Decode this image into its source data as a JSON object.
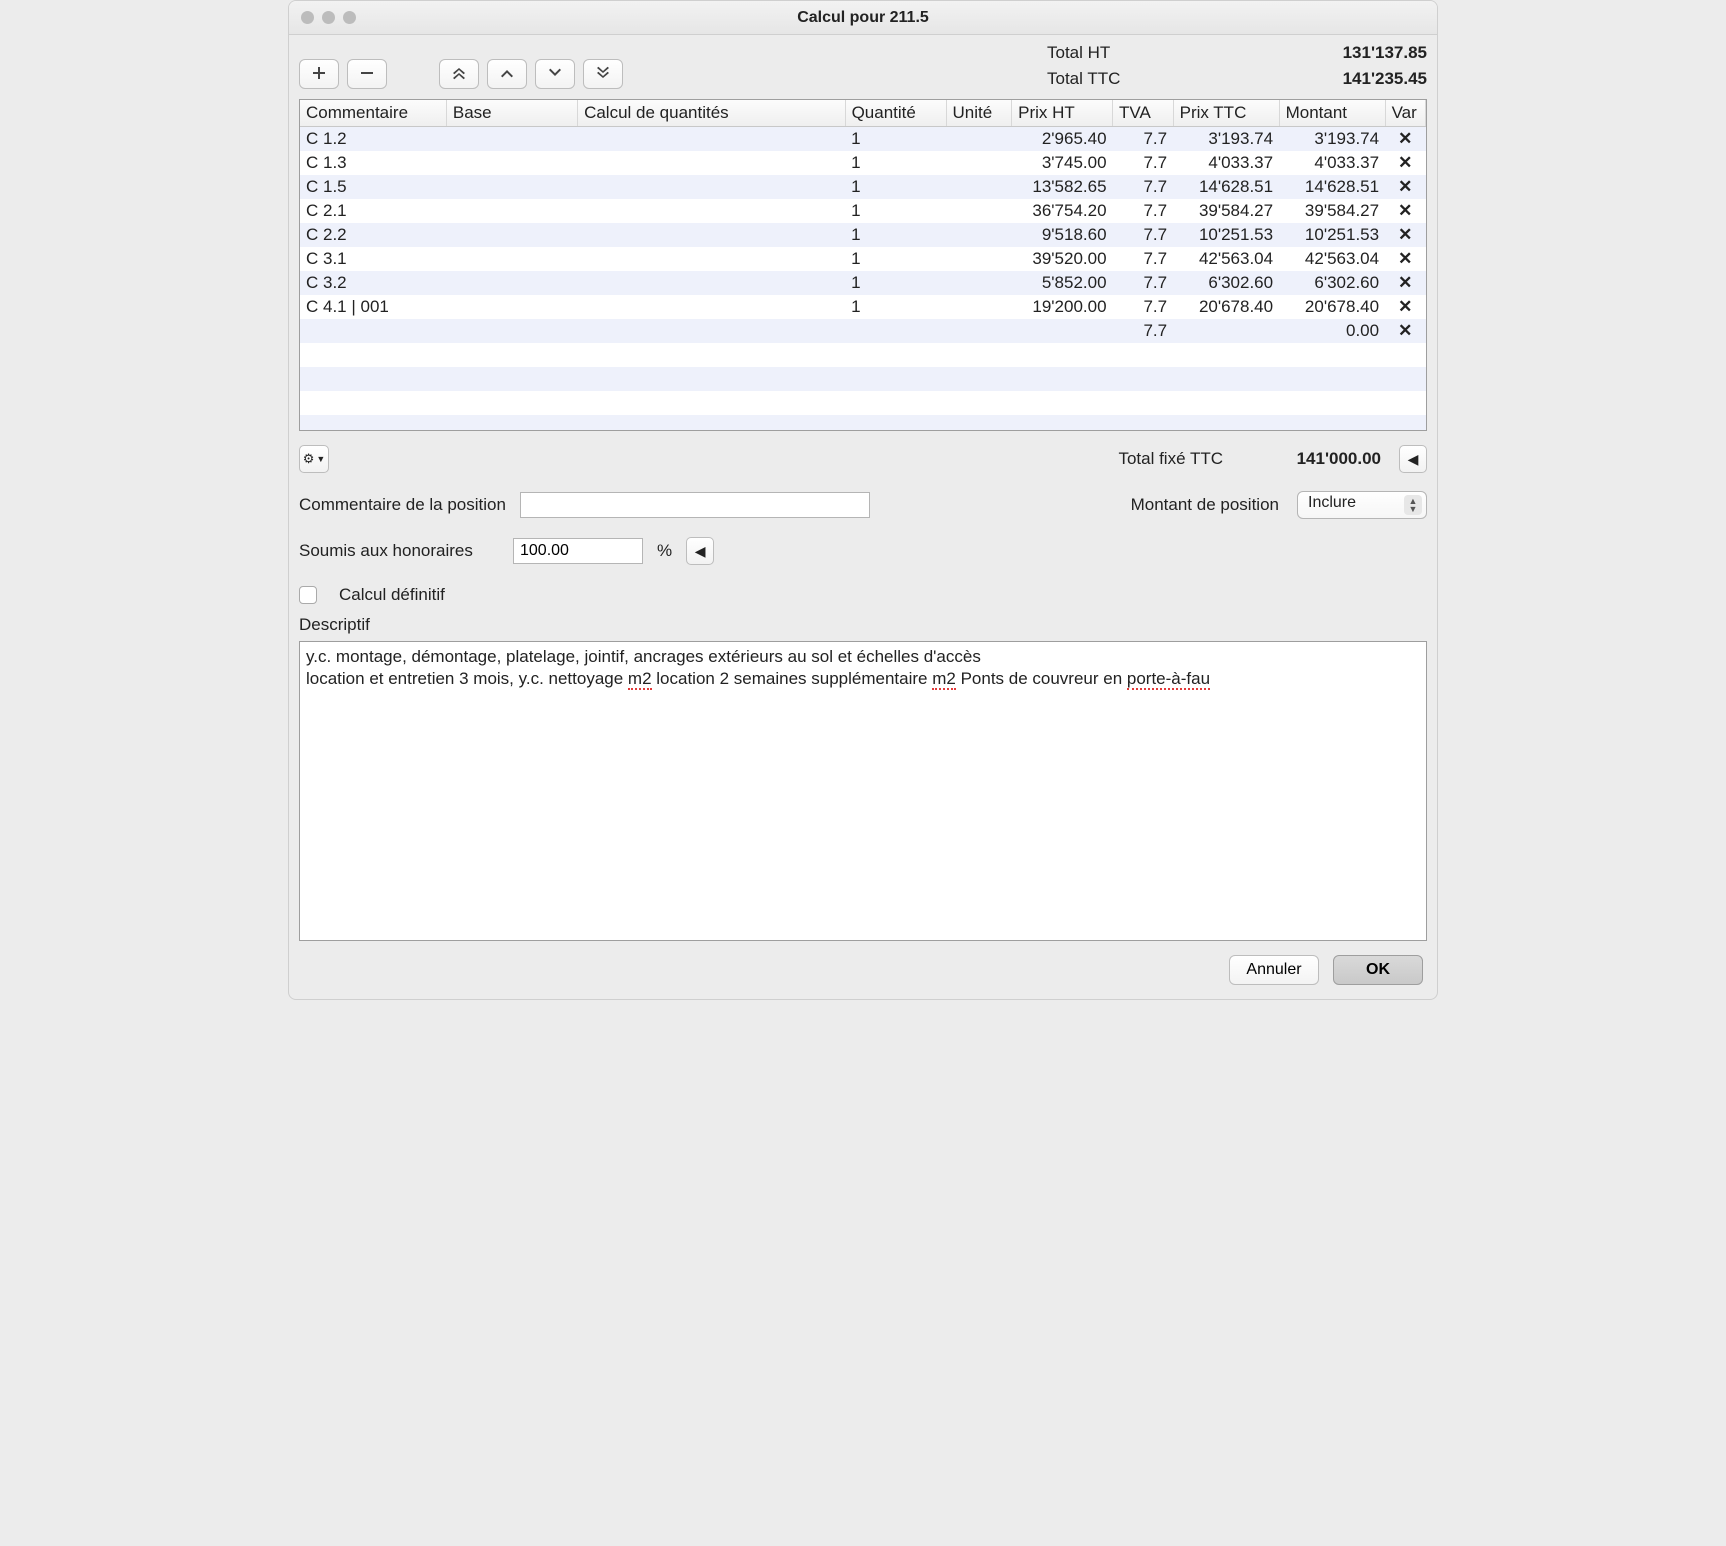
{
  "window": {
    "title": "Calcul pour 211.5"
  },
  "totals": {
    "ht_label": "Total HT",
    "ht_value": "131'137.85",
    "ttc_label": "Total TTC",
    "ttc_value": "141'235.45"
  },
  "toolbar": {
    "plus": "+",
    "minus": "−",
    "top": "⌃⌃",
    "up": "⌃",
    "down": "⌄",
    "bottom": "⌄⌄"
  },
  "columns": {
    "commentaire": "Commentaire",
    "base": "Base",
    "calc": "Calcul de quantités",
    "qte": "Quantité",
    "unite": "Unité",
    "prix_ht": "Prix HT",
    "tva": "TVA",
    "prix_ttc": "Prix TTC",
    "montant": "Montant",
    "var": "Var"
  },
  "rows": [
    {
      "commentaire": "C 1.2",
      "base": "",
      "calc": "",
      "qte": "1",
      "unite": "",
      "prix_ht": "2'965.40",
      "tva": "7.7",
      "prix_ttc": "3'193.74",
      "montant": "3'193.74",
      "var": "✕"
    },
    {
      "commentaire": "C 1.3",
      "base": "",
      "calc": "",
      "qte": "1",
      "unite": "",
      "prix_ht": "3'745.00",
      "tva": "7.7",
      "prix_ttc": "4'033.37",
      "montant": "4'033.37",
      "var": "✕"
    },
    {
      "commentaire": "C 1.5",
      "base": "",
      "calc": "",
      "qte": "1",
      "unite": "",
      "prix_ht": "13'582.65",
      "tva": "7.7",
      "prix_ttc": "14'628.51",
      "montant": "14'628.51",
      "var": "✕"
    },
    {
      "commentaire": "C 2.1",
      "base": "",
      "calc": "",
      "qte": "1",
      "unite": "",
      "prix_ht": "36'754.20",
      "tva": "7.7",
      "prix_ttc": "39'584.27",
      "montant": "39'584.27",
      "var": "✕"
    },
    {
      "commentaire": "C 2.2",
      "base": "",
      "calc": "",
      "qte": "1",
      "unite": "",
      "prix_ht": "9'518.60",
      "tva": "7.7",
      "prix_ttc": "10'251.53",
      "montant": "10'251.53",
      "var": "✕"
    },
    {
      "commentaire": "C 3.1",
      "base": "",
      "calc": "",
      "qte": "1",
      "unite": "",
      "prix_ht": "39'520.00",
      "tva": "7.7",
      "prix_ttc": "42'563.04",
      "montant": "42'563.04",
      "var": "✕"
    },
    {
      "commentaire": "C 3.2",
      "base": "",
      "calc": "",
      "qte": "1",
      "unite": "",
      "prix_ht": "5'852.00",
      "tva": "7.7",
      "prix_ttc": "6'302.60",
      "montant": "6'302.60",
      "var": "✕"
    },
    {
      "commentaire": "C 4.1 | 001",
      "base": "",
      "calc": "",
      "qte": "1",
      "unite": "",
      "prix_ht": "19'200.00",
      "tva": "7.7",
      "prix_ttc": "20'678.40",
      "montant": "20'678.40",
      "var": "✕"
    },
    {
      "commentaire": "",
      "base": "",
      "calc": "",
      "qte": "",
      "unite": "",
      "prix_ht": "",
      "tva": "7.7",
      "prix_ttc": "",
      "montant": "0.00",
      "var": "✕"
    }
  ],
  "blank_rows": 4,
  "fix_total": {
    "label": "Total fixé TTC",
    "value": "141'000.00"
  },
  "position": {
    "commentaire_label": "Commentaire de la position",
    "commentaire_value": "",
    "montant_label": "Montant de position",
    "montant_selected": "Inclure"
  },
  "honoraires": {
    "label": "Soumis aux honoraires",
    "value": "100.00",
    "suffix": "%"
  },
  "definitif": {
    "label": "Calcul définitif",
    "checked": false
  },
  "descriptif": {
    "label": "Descriptif",
    "line1_a": "y.c. montage, démontage, platelage, jointif, ancrages extérieurs au sol et échelles d'accès",
    "line2_a": "location et entretien 3 mois, y.c. nettoyage ",
    "line2_s1": "m2",
    "line2_b": " location 2 semaines supplémentaire ",
    "line2_s2": "m2",
    "line2_c": " Ponts de couvreur en ",
    "line2_s3": "porte-à-fau"
  },
  "footer": {
    "cancel": "Annuler",
    "ok": "OK"
  },
  "style": {
    "alt_row_bg": "#eef1fb",
    "border": "#9e9e9e",
    "header_bg_top": "#fcfcfc",
    "header_bg_bot": "#efefef"
  }
}
